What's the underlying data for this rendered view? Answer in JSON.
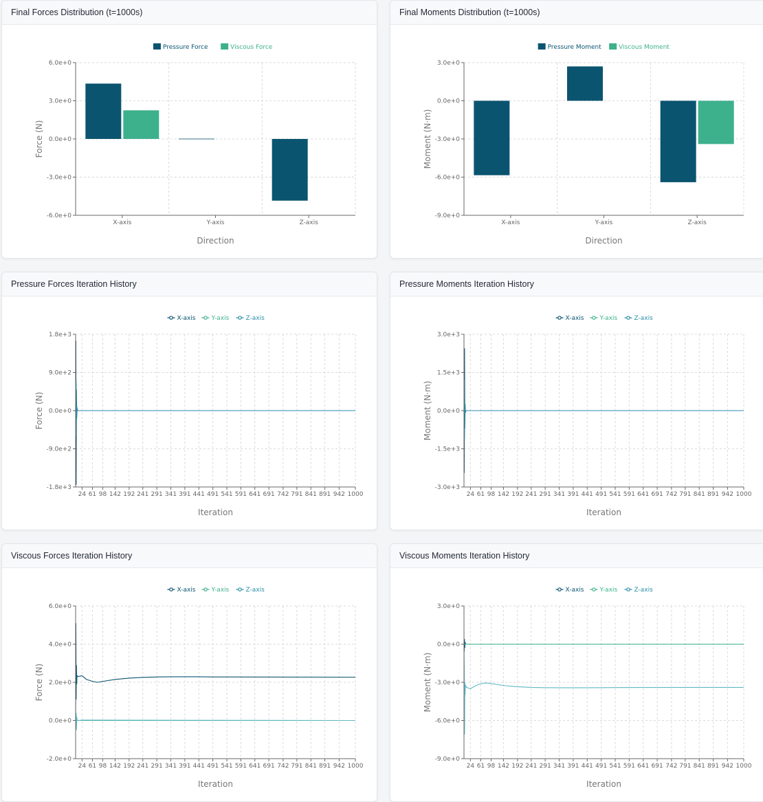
{
  "colors": {
    "x": "#0b5470",
    "y": "#3db08c",
    "z": "#2a8ea8",
    "viscous_y": "#5fb8c5"
  },
  "charts": [
    {
      "title": "Final Forces Distribution (t=1000s)",
      "chart_data": {
        "type": "bar",
        "categories": [
          "X-axis",
          "Y-axis",
          "Z-axis"
        ],
        "series": [
          {
            "name": "Pressure Force",
            "values": [
              4.35,
              0.02,
              -4.85
            ]
          },
          {
            "name": "Viscous Force",
            "values": [
              2.25,
              0.0,
              0.0
            ]
          }
        ],
        "ylim": [
          -6,
          6
        ],
        "yticks": [
          "6.0e+0",
          "3.0e+0",
          "0.0e+0",
          "-3.0e+0",
          "-6.0e+0"
        ],
        "ylabel": "Force (N)",
        "xlabel": "Direction",
        "legend": "top-center",
        "grid": true
      }
    },
    {
      "title": "Final Moments Distribution (t=1000s)",
      "chart_data": {
        "type": "bar",
        "categories": [
          "X-axis",
          "Y-axis",
          "Z-axis"
        ],
        "series": [
          {
            "name": "Pressure Moment",
            "values": [
              -5.85,
              2.7,
              -6.4
            ]
          },
          {
            "name": "Viscous Moment",
            "values": [
              0.0,
              0.0,
              -3.4
            ]
          }
        ],
        "ylim": [
          -9,
          3
        ],
        "yticks": [
          "3.0e+0",
          "0.0e+0",
          "-3.0e+0",
          "-6.0e+0",
          "-9.0e+0"
        ],
        "ylabel": "Moment (N·m)",
        "xlabel": "Direction",
        "legend": "top-center",
        "grid": true
      }
    },
    {
      "title": "Pressure Forces Iteration History",
      "chart_data": {
        "type": "line",
        "ylim": [
          -1800,
          1800
        ],
        "yticks": [
          "1.8e+3",
          "9.0e+2",
          "0.0e+0",
          "-9.0e+2",
          "-1.8e+3"
        ],
        "xticks": [
          "24",
          "61",
          "98",
          "142",
          "192",
          "241",
          "291",
          "341",
          "391",
          "441",
          "491",
          "541",
          "591",
          "641",
          "691",
          "742",
          "791",
          "841",
          "891",
          "942",
          "1000"
        ],
        "ylabel": "Force (N)",
        "xlabel": "Iteration",
        "legend": "top-center",
        "grid": true,
        "series": [
          {
            "name": "X-axis",
            "points": [
              [
                1,
                0
              ],
              [
                2,
                1650
              ],
              [
                3,
                -1750
              ],
              [
                4,
                500
              ],
              [
                5,
                -180
              ],
              [
                6,
                60
              ],
              [
                8,
                0
              ],
              [
                1000,
                0
              ]
            ]
          },
          {
            "name": "Y-axis",
            "points": [
              [
                1,
                0
              ],
              [
                1000,
                0
              ]
            ]
          },
          {
            "name": "Z-axis",
            "points": [
              [
                1,
                0
              ],
              [
                2,
                -600
              ],
              [
                3,
                700
              ],
              [
                4,
                -250
              ],
              [
                5,
                120
              ],
              [
                7,
                0
              ],
              [
                1000,
                0
              ]
            ]
          }
        ]
      }
    },
    {
      "title": "Pressure Moments Iteration History",
      "chart_data": {
        "type": "line",
        "ylim": [
          -3000,
          3000
        ],
        "yticks": [
          "3.0e+3",
          "1.5e+3",
          "0.0e+0",
          "-1.5e+3",
          "-3.0e+3"
        ],
        "xticks": [
          "24",
          "61",
          "98",
          "142",
          "192",
          "241",
          "291",
          "341",
          "391",
          "441",
          "491",
          "541",
          "591",
          "641",
          "691",
          "742",
          "791",
          "841",
          "891",
          "942",
          "1000"
        ],
        "ylabel": "Moment (N·m)",
        "xlabel": "Iteration",
        "legend": "top-center",
        "grid": true,
        "series": [
          {
            "name": "X-axis",
            "points": [
              [
                1,
                0
              ],
              [
                2,
                -2450
              ],
              [
                3,
                2450
              ],
              [
                4,
                -700
              ],
              [
                5,
                250
              ],
              [
                6,
                -80
              ],
              [
                8,
                0
              ],
              [
                1000,
                0
              ]
            ]
          },
          {
            "name": "Y-axis",
            "points": [
              [
                1,
                0
              ],
              [
                1000,
                0
              ]
            ]
          },
          {
            "name": "Z-axis",
            "points": [
              [
                1,
                0
              ],
              [
                2,
                1200
              ],
              [
                3,
                -1100
              ],
              [
                4,
                300
              ],
              [
                5,
                -100
              ],
              [
                7,
                0
              ],
              [
                1000,
                0
              ]
            ]
          }
        ]
      }
    },
    {
      "title": "Viscous Forces Iteration History",
      "chart_data": {
        "type": "line",
        "ylim": [
          -2,
          6
        ],
        "yticks": [
          "6.0e+0",
          "4.0e+0",
          "2.0e+0",
          "0.0e+0",
          "-2.0e+0"
        ],
        "xticks": [
          "24",
          "61",
          "98",
          "142",
          "192",
          "241",
          "291",
          "341",
          "391",
          "441",
          "491",
          "541",
          "591",
          "641",
          "691",
          "742",
          "791",
          "841",
          "891",
          "942",
          "1000"
        ],
        "ylabel": "Force (N)",
        "xlabel": "Iteration",
        "legend": "top-center",
        "grid": true,
        "series": [
          {
            "name": "X-axis",
            "points": [
              [
                1,
                0
              ],
              [
                2,
                5.1
              ],
              [
                3,
                1.1
              ],
              [
                4,
                2.9
              ],
              [
                5,
                1.9
              ],
              [
                6,
                2.35
              ],
              [
                10,
                2.3
              ],
              [
                24,
                2.35
              ],
              [
                40,
                2.15
              ],
              [
                61,
                2.05
              ],
              [
                80,
                2.0
              ],
              [
                98,
                2.05
              ],
              [
                142,
                2.15
              ],
              [
                192,
                2.22
              ],
              [
                241,
                2.26
              ],
              [
                291,
                2.28
              ],
              [
                341,
                2.29
              ],
              [
                391,
                2.29
              ],
              [
                441,
                2.29
              ],
              [
                491,
                2.28
              ],
              [
                541,
                2.28
              ],
              [
                1000,
                2.27
              ]
            ]
          },
          {
            "name": "Y-axis",
            "points": [
              [
                1,
                0
              ],
              [
                1000,
                0
              ]
            ]
          },
          {
            "name": "Z-axis",
            "points": [
              [
                1,
                0
              ],
              [
                2,
                -0.4
              ],
              [
                3,
                0.4
              ],
              [
                4,
                -0.5
              ],
              [
                5,
                0.2
              ],
              [
                6,
                0.05
              ],
              [
                10,
                0.0
              ],
              [
                24,
                0.02
              ],
              [
                1000,
                0.0
              ]
            ]
          }
        ]
      }
    },
    {
      "title": "Viscous Moments Iteration History",
      "chart_data": {
        "type": "line",
        "ylim": [
          -9,
          3
        ],
        "yticks": [
          "3.0e+0",
          "0.0e+0",
          "-3.0e+0",
          "-6.0e+0",
          "-9.0e+0"
        ],
        "xticks": [
          "24",
          "61",
          "98",
          "142",
          "192",
          "241",
          "291",
          "341",
          "391",
          "441",
          "491",
          "541",
          "591",
          "641",
          "691",
          "742",
          "791",
          "841",
          "891",
          "942",
          "1000"
        ],
        "ylabel": "Moment (N·m)",
        "xlabel": "Iteration",
        "legend": "top-center",
        "grid": true,
        "series": [
          {
            "name": "X-axis",
            "points": [
              [
                1,
                0
              ],
              [
                2,
                -0.6
              ],
              [
                3,
                0.4
              ],
              [
                4,
                -0.3
              ],
              [
                5,
                0.15
              ],
              [
                7,
                0.0
              ],
              [
                1000,
                0.0
              ]
            ]
          },
          {
            "name": "Y-axis",
            "points": [
              [
                1,
                0
              ],
              [
                1000,
                0
              ]
            ]
          },
          {
            "name": "Z-axis",
            "points": [
              [
                1,
                0
              ],
              [
                2,
                -1.8
              ],
              [
                3,
                -7.1
              ],
              [
                4,
                -3.0
              ],
              [
                5,
                -4.0
              ],
              [
                6,
                -3.2
              ],
              [
                10,
                -3.4
              ],
              [
                24,
                -3.5
              ],
              [
                40,
                -3.3
              ],
              [
                61,
                -3.1
              ],
              [
                80,
                -3.05
              ],
              [
                98,
                -3.1
              ],
              [
                142,
                -3.25
              ],
              [
                192,
                -3.35
              ],
              [
                241,
                -3.4
              ],
              [
                291,
                -3.42
              ],
              [
                391,
                -3.43
              ],
              [
                491,
                -3.42
              ],
              [
                591,
                -3.41
              ],
              [
                1000,
                -3.4
              ]
            ]
          }
        ]
      }
    }
  ]
}
